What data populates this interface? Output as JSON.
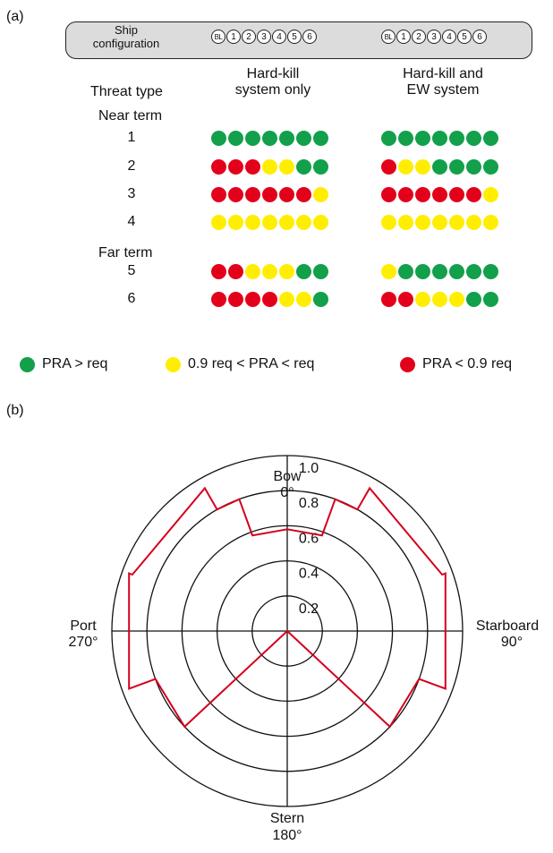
{
  "panel_a": {
    "label": "(a)",
    "config_label_line1": "Ship",
    "config_label_line2": "configuration",
    "config_items": [
      "BL",
      "1",
      "2",
      "3",
      "4",
      "5",
      "6"
    ],
    "col1_line1": "Hard-kill",
    "col1_line2": "system only",
    "col2_line1": "Hard-kill and",
    "col2_line2": "EW system",
    "threat_type_label": "Threat type",
    "near_term_label": "Near term",
    "far_term_label": "Far term"
  },
  "legend": {
    "green_label": "PRA > req",
    "yellow_label": "0.9 req < PRA < req",
    "red_label": "PRA < 0.9 req"
  },
  "colors": {
    "green": "#12a04a",
    "yellow": "#ffee00",
    "red": "#e3001b",
    "polar_line": "#d4001c"
  },
  "chart_data": [
    {
      "type": "table",
      "title": "",
      "columns": [
        "Hard-kill system only",
        "Hard-kill and EW system"
      ],
      "column_items": [
        "BL",
        "1",
        "2",
        "3",
        "4",
        "5",
        "6"
      ],
      "rows": [
        {
          "threat": "1",
          "term": "Near term",
          "hardkill": [
            "G",
            "G",
            "G",
            "G",
            "G",
            "G",
            "G"
          ],
          "hardkill_ew": [
            "G",
            "G",
            "G",
            "G",
            "G",
            "G",
            "G"
          ]
        },
        {
          "threat": "2",
          "term": "Near term",
          "hardkill": [
            "R",
            "R",
            "R",
            "Y",
            "Y",
            "G",
            "G"
          ],
          "hardkill_ew": [
            "R",
            "Y",
            "Y",
            "G",
            "G",
            "G",
            "G"
          ]
        },
        {
          "threat": "3",
          "term": "Near term",
          "hardkill": [
            "R",
            "R",
            "R",
            "R",
            "R",
            "R",
            "Y"
          ],
          "hardkill_ew": [
            "R",
            "R",
            "R",
            "R",
            "R",
            "R",
            "Y"
          ]
        },
        {
          "threat": "4",
          "term": "Near term",
          "hardkill": [
            "Y",
            "Y",
            "Y",
            "Y",
            "Y",
            "Y",
            "Y"
          ],
          "hardkill_ew": [
            "Y",
            "Y",
            "Y",
            "Y",
            "Y",
            "Y",
            "Y"
          ]
        },
        {
          "threat": "5",
          "term": "Far term",
          "hardkill": [
            "R",
            "R",
            "Y",
            "Y",
            "Y",
            "G",
            "G"
          ],
          "hardkill_ew": [
            "Y",
            "G",
            "G",
            "G",
            "G",
            "G",
            "G"
          ]
        },
        {
          "threat": "6",
          "term": "Far term",
          "hardkill": [
            "R",
            "R",
            "R",
            "R",
            "Y",
            "Y",
            "G"
          ],
          "hardkill_ew": [
            "R",
            "R",
            "Y",
            "Y",
            "Y",
            "G",
            "G"
          ]
        }
      ]
    },
    {
      "type": "line",
      "subtype": "polar",
      "label": "(b)",
      "radial_ticks": [
        "0.2",
        "0.4",
        "0.6",
        "0.8",
        "1.0"
      ],
      "radial_values": [
        0.2,
        0.4,
        0.6,
        0.8,
        1.0
      ],
      "rlim": [
        0,
        1.0
      ],
      "direction_labels": {
        "bow": "Bow",
        "bow_deg": "0°",
        "starboard": "Starboard",
        "starboard_deg": "90°",
        "stern": "Stern",
        "stern_deg": "180°",
        "port": "Port",
        "port_deg": "270°"
      },
      "series": [
        {
          "points": [
            {
              "angle": 0,
              "r": 0.58
            },
            {
              "angle": 20,
              "r": 0.58
            },
            {
              "angle": 20,
              "r": 0.8
            },
            {
              "angle": 30,
              "r": 0.8
            },
            {
              "angle": 30,
              "r": 0.94
            },
            {
              "angle": 70,
              "r": 0.94
            },
            {
              "angle": 70,
              "r": 0.96
            },
            {
              "angle": 110,
              "r": 0.96
            },
            {
              "angle": 110,
              "r": 0.8
            },
            {
              "angle": 133,
              "r": 0.8
            },
            {
              "angle": 133,
              "r": 0.0
            },
            {
              "angle": 227,
              "r": 0.0
            },
            {
              "angle": 227,
              "r": 0.8
            },
            {
              "angle": 250,
              "r": 0.8
            },
            {
              "angle": 250,
              "r": 0.96
            },
            {
              "angle": 290,
              "r": 0.96
            },
            {
              "angle": 290,
              "r": 0.94
            },
            {
              "angle": 330,
              "r": 0.94
            },
            {
              "angle": 330,
              "r": 0.8
            },
            {
              "angle": 340,
              "r": 0.8
            },
            {
              "angle": 340,
              "r": 0.58
            },
            {
              "angle": 360,
              "r": 0.58
            }
          ]
        }
      ]
    }
  ]
}
